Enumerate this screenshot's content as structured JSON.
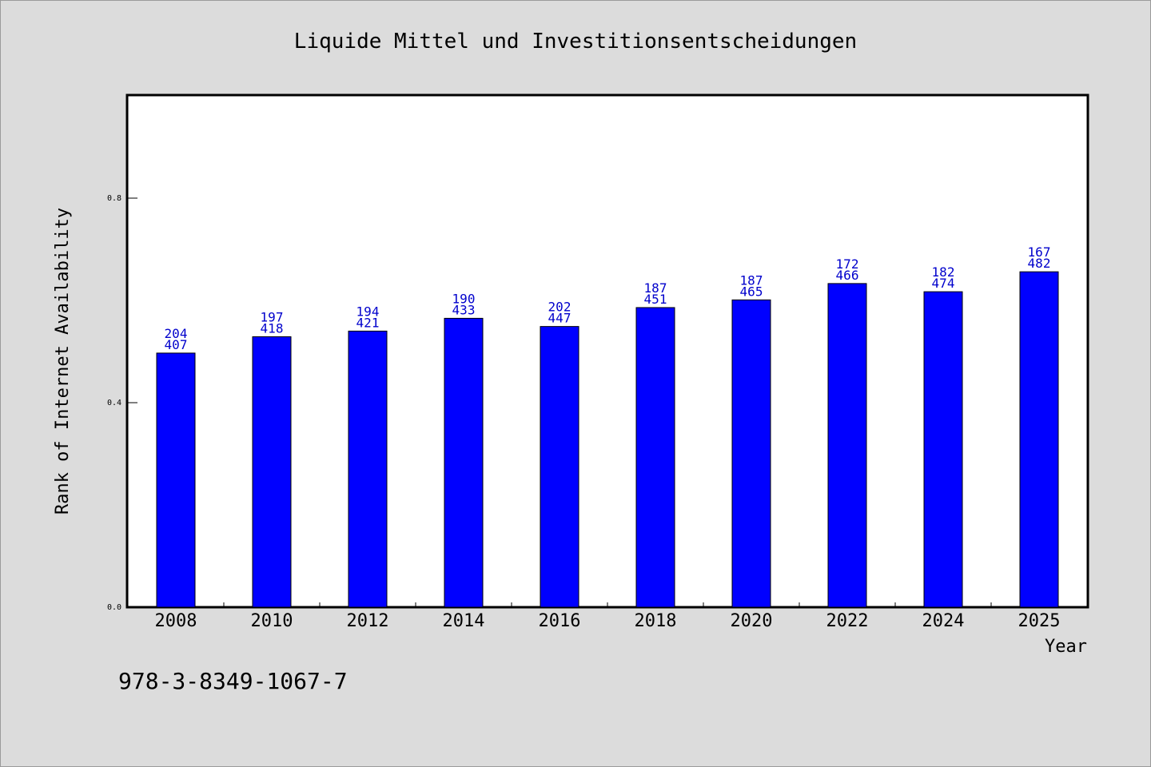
{
  "chart_data": {
    "type": "bar",
    "title": "Liquide Mittel und Investitionsentscheidungen",
    "xlabel": "Year",
    "ylabel": "Rank of Internet Availability",
    "categories": [
      "2008",
      "2010",
      "2012",
      "2014",
      "2016",
      "2018",
      "2020",
      "2022",
      "2024",
      "2025"
    ],
    "values": [
      0.497,
      0.529,
      0.54,
      0.565,
      0.549,
      0.586,
      0.601,
      0.633,
      0.617,
      0.656
    ],
    "labels_top": [
      "204",
      "197",
      "194",
      "190",
      "202",
      "187",
      "187",
      "172",
      "182",
      "167"
    ],
    "labels_bottom": [
      "407",
      "418",
      "421",
      "433",
      "447",
      "451",
      "465",
      "466",
      "474",
      "482"
    ],
    "yticks": [
      "0.0",
      "0.4",
      "0.8"
    ],
    "ylim": [
      0,
      1.0
    ],
    "grid": false,
    "bar_color": "#0000ff",
    "label_color": "#0000cc"
  },
  "footnote": "978-3-8349-1067-7"
}
